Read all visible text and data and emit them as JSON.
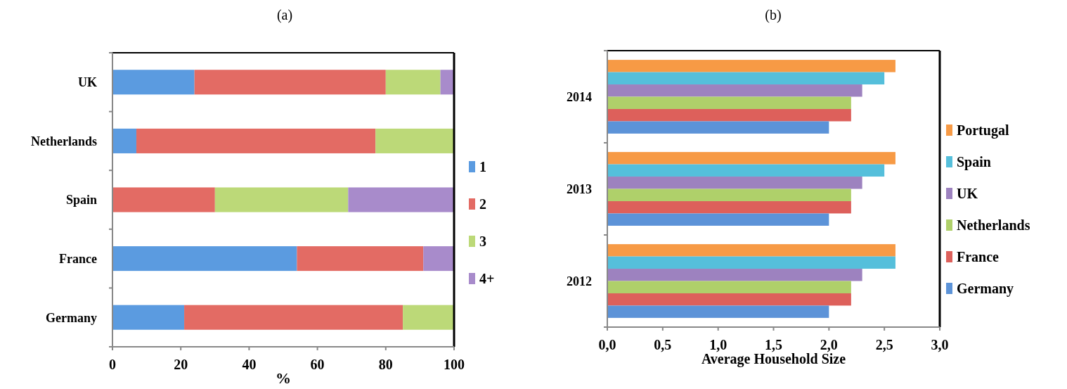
{
  "chart_data": [
    {
      "type": "bar",
      "title": "(a)",
      "orientation": "horizontal",
      "stacked": true,
      "categories": [
        "UK",
        "Netherlands",
        "Spain",
        "France",
        "Germany"
      ],
      "xlabel": "%",
      "xlim": [
        0,
        100
      ],
      "xticks": [
        0,
        20,
        40,
        60,
        80,
        100
      ],
      "legend": "right",
      "grid": false,
      "series": [
        {
          "name": "1",
          "color": "#5b9be0",
          "values": [
            24,
            7,
            0,
            54,
            21
          ]
        },
        {
          "name": "2",
          "color": "#e36b64",
          "values": [
            56,
            70,
            30,
            37,
            64
          ]
        },
        {
          "name": "3",
          "color": "#bcd978",
          "values": [
            16,
            23,
            39,
            0,
            15
          ]
        },
        {
          "name": "4+",
          "color": "#a88bcb",
          "values": [
            4,
            0,
            31,
            9,
            0
          ]
        }
      ]
    },
    {
      "type": "bar",
      "title": "(b)",
      "orientation": "horizontal",
      "categories": [
        "2014",
        "2013",
        "2012"
      ],
      "xlabel": "Average Household Size",
      "xlim": [
        0,
        3
      ],
      "xticks": [
        {
          "value": 0,
          "label": "0,0"
        },
        {
          "value": 0.5,
          "label": "0,5"
        },
        {
          "value": 1,
          "label": "1,0"
        },
        {
          "value": 1.5,
          "label": "1,5"
        },
        {
          "value": 2,
          "label": "2,0"
        },
        {
          "value": 2.5,
          "label": "2,5"
        },
        {
          "value": 3,
          "label": "3,0"
        }
      ],
      "legend": "right",
      "grid": false,
      "series": [
        {
          "name": "Portugal",
          "color": "#f79a45",
          "values": [
            2.6,
            2.6,
            2.6
          ]
        },
        {
          "name": "Spain",
          "color": "#55bfdb",
          "values": [
            2.5,
            2.5,
            2.6
          ]
        },
        {
          "name": "UK",
          "color": "#9d82bf",
          "values": [
            2.3,
            2.3,
            2.3
          ]
        },
        {
          "name": "Netherlands",
          "color": "#afd06a",
          "values": [
            2.2,
            2.2,
            2.2
          ]
        },
        {
          "name": "France",
          "color": "#dd605b",
          "values": [
            2.2,
            2.2,
            2.2
          ]
        },
        {
          "name": "Germany",
          "color": "#5c93d8",
          "values": [
            2.0,
            2.0,
            2.0
          ]
        }
      ]
    }
  ]
}
